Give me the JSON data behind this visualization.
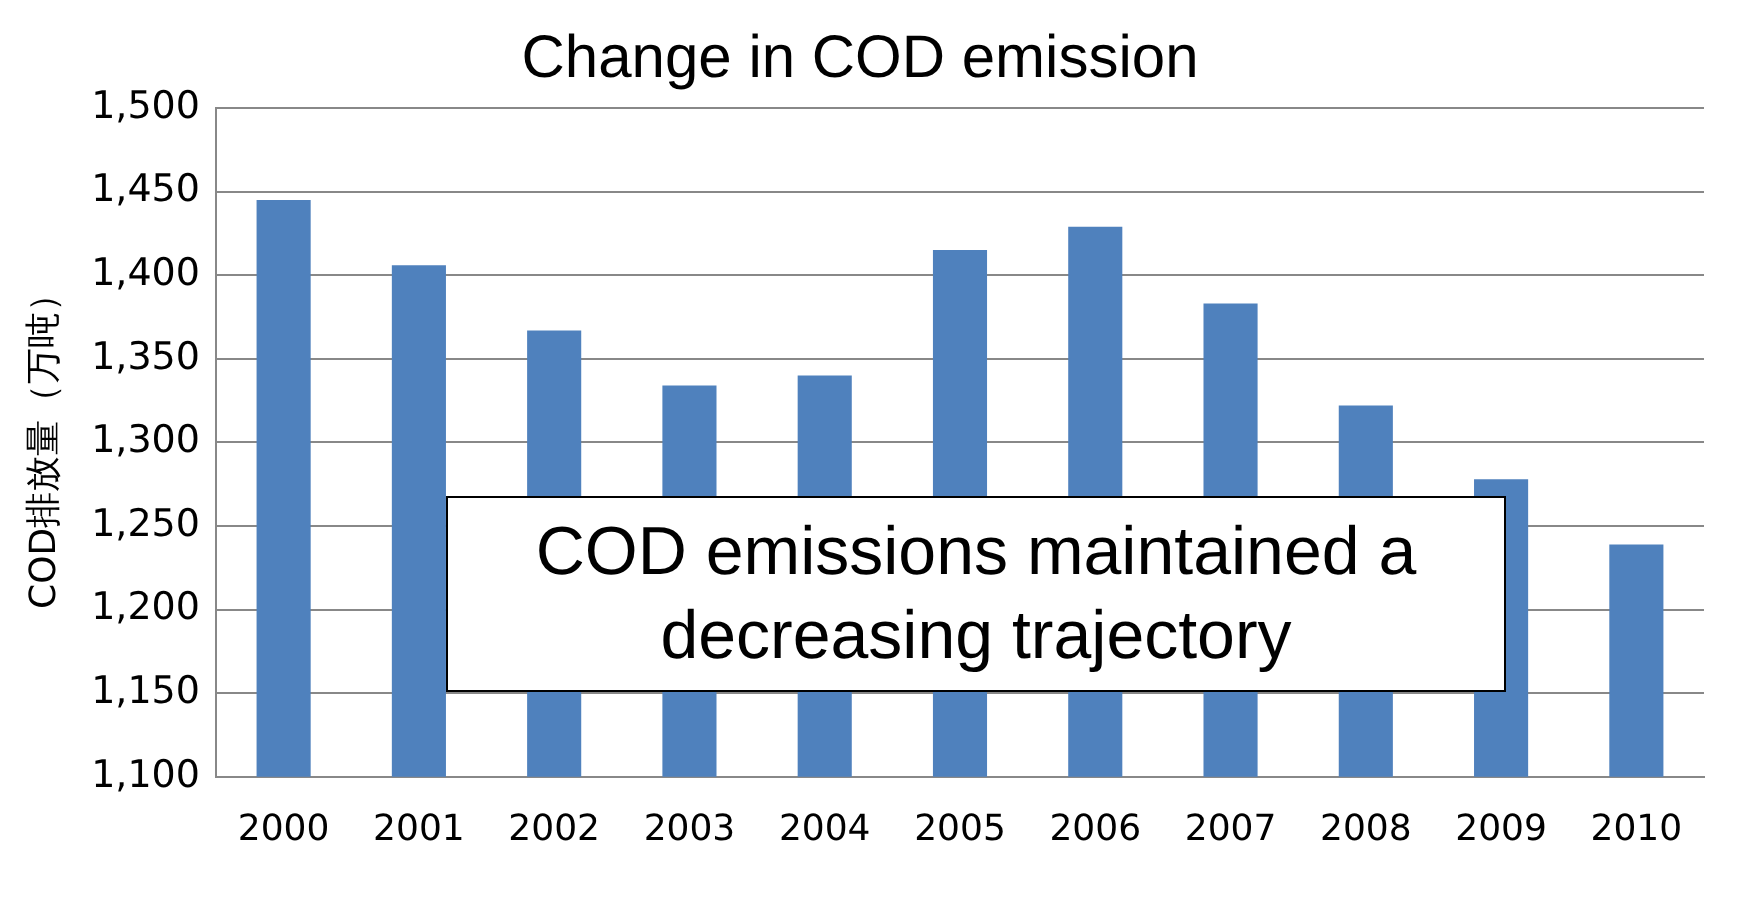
{
  "chart_data": {
    "type": "bar",
    "title": "Change in COD emission",
    "ylabel": "COD排放量（万吨）",
    "categories": [
      "2000",
      "2001",
      "2002",
      "2003",
      "2004",
      "2005",
      "2006",
      "2007",
      "2008",
      "2009",
      "2010"
    ],
    "values": [
      1445,
      1406,
      1367,
      1334,
      1340,
      1415,
      1429,
      1383,
      1322,
      1278,
      1239
    ],
    "color": "#4f81bd",
    "ylim": [
      1100,
      1500
    ],
    "yticks": [
      {
        "value": 1100,
        "label": "1,100"
      },
      {
        "value": 1150,
        "label": "1,150"
      },
      {
        "value": 1200,
        "label": "1,200"
      },
      {
        "value": 1250,
        "label": "1,250"
      },
      {
        "value": 1300,
        "label": "1,300"
      },
      {
        "value": 1350,
        "label": "1,350"
      },
      {
        "value": 1400,
        "label": "1,400"
      },
      {
        "value": 1450,
        "label": "1,450"
      },
      {
        "value": 1500,
        "label": "1,500"
      }
    ],
    "grid": "y",
    "legend": false,
    "annotations": [
      "COD emissions maintained a decreasing trajectory"
    ]
  }
}
